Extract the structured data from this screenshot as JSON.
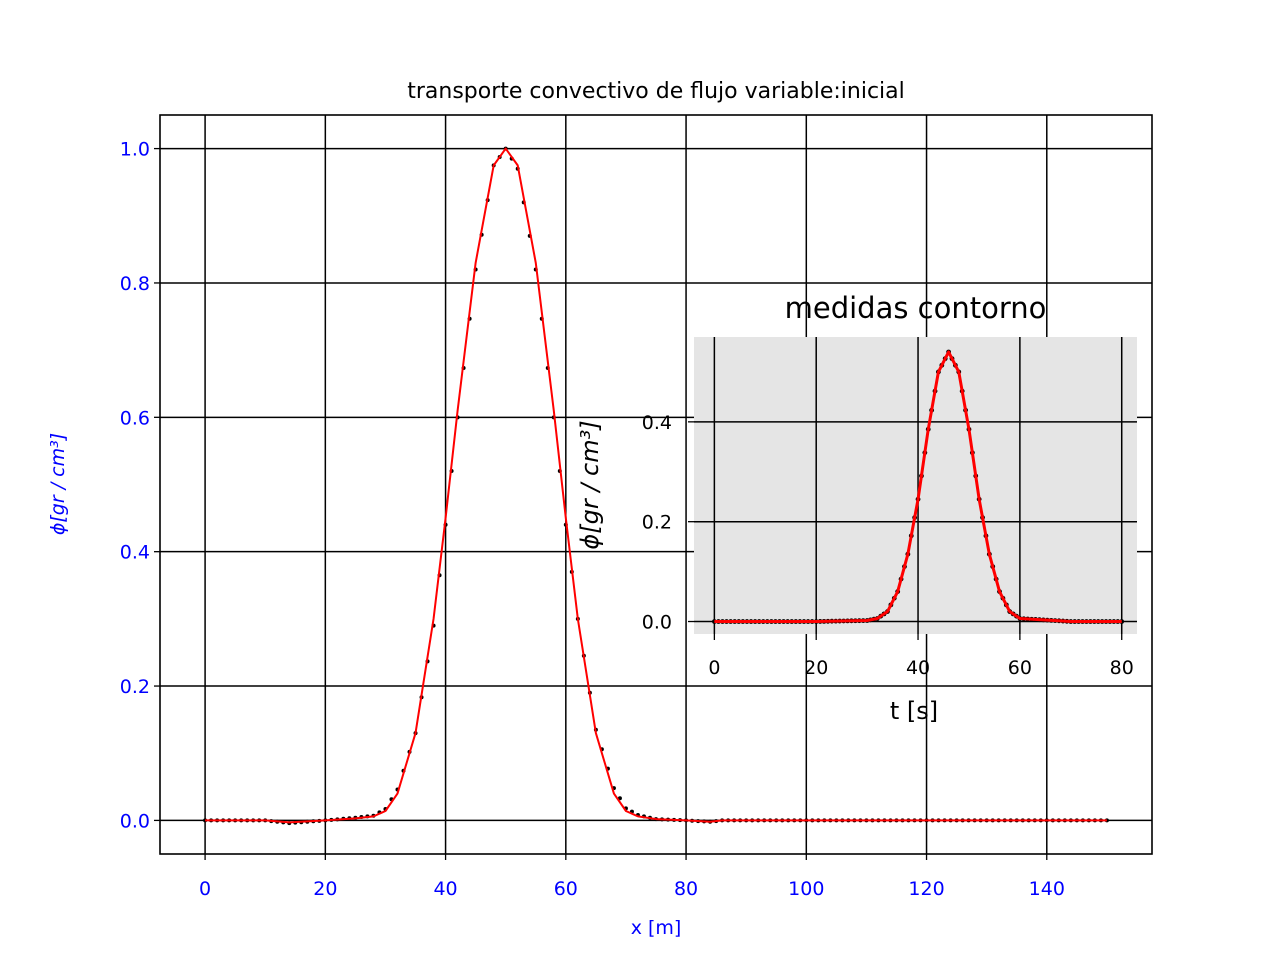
{
  "chart_data": [
    {
      "type": "line",
      "title": "transporte convectivo de flujo variable:inicial",
      "xlabel": "x [m]",
      "ylabel": "ϕ[gr / cm³]",
      "xlim": [
        -7.5,
        157.5
      ],
      "ylim": [
        -0.05,
        1.05
      ],
      "xticks": [
        "0",
        "20",
        "40",
        "60",
        "80",
        "100",
        "120",
        "140"
      ],
      "yticks": [
        "0.0",
        "0.2",
        "0.4",
        "0.6",
        "0.8",
        "1.0"
      ],
      "grid": true,
      "axis_text_color": "#0000ff",
      "background": "#ffffff",
      "series": [
        {
          "style": "dotted-markers",
          "color": "#000000",
          "x": [
            0,
            10,
            14,
            20,
            25,
            28,
            30,
            32,
            35,
            38,
            40,
            42,
            45,
            48,
            50,
            52,
            55,
            58,
            60,
            62,
            65,
            68,
            70,
            72,
            75,
            80,
            84,
            86,
            90,
            100,
            120,
            150
          ],
          "y": [
            0.0,
            0.0,
            -0.004,
            0.0,
            0.004,
            0.007,
            0.017,
            0.046,
            0.13,
            0.29,
            0.44,
            0.6,
            0.82,
            0.975,
            1.0,
            0.97,
            0.82,
            0.6,
            0.44,
            0.3,
            0.135,
            0.048,
            0.018,
            0.008,
            0.002,
            0.0,
            -0.002,
            0.0,
            0.0,
            0.0,
            0.0,
            0.0
          ]
        },
        {
          "style": "solid-line",
          "color": "#ff0000",
          "x": [
            0,
            10,
            14,
            20,
            25,
            28,
            30,
            32,
            35,
            38,
            40,
            42,
            45,
            48,
            50,
            52,
            55,
            58,
            60,
            62,
            65,
            68,
            70,
            72,
            75,
            80,
            84,
            86,
            90,
            100,
            120,
            150
          ],
          "y": [
            0.0,
            0.0,
            -0.003,
            0.0,
            0.003,
            0.006,
            0.014,
            0.04,
            0.13,
            0.3,
            0.45,
            0.61,
            0.83,
            0.975,
            1.0,
            0.975,
            0.83,
            0.61,
            0.45,
            0.3,
            0.13,
            0.04,
            0.014,
            0.006,
            0.002,
            0.0,
            -0.002,
            0.0,
            0.0,
            0.0,
            0.0,
            0.0
          ]
        }
      ]
    },
    {
      "type": "line",
      "title": "medidas contorno",
      "xlabel": "t [s]",
      "ylabel": "ϕ[gr / cm³]",
      "xlim": [
        -4,
        83
      ],
      "ylim": [
        -0.025,
        0.57
      ],
      "xticks": [
        "0",
        "20",
        "40",
        "60",
        "80"
      ],
      "yticks": [
        "0.0",
        "0.2",
        "0.4"
      ],
      "grid": true,
      "axis_text_color": "#000000",
      "background": "#e5e5e5",
      "series": [
        {
          "style": "dotted-markers",
          "color": "#000000",
          "x": [
            0,
            20,
            30,
            32,
            34,
            36,
            38,
            40,
            42,
            44,
            46,
            48,
            50,
            52,
            54,
            56,
            58,
            60,
            70,
            80
          ],
          "y": [
            0.0,
            0.0,
            0.002,
            0.006,
            0.02,
            0.06,
            0.135,
            0.245,
            0.385,
            0.5,
            0.54,
            0.5,
            0.385,
            0.245,
            0.135,
            0.06,
            0.02,
            0.006,
            0.0,
            0.0
          ]
        },
        {
          "style": "solid-line",
          "color": "#ff0000",
          "x": [
            0,
            20,
            30,
            32,
            34,
            36,
            38,
            40,
            42,
            44,
            46,
            48,
            50,
            52,
            54,
            56,
            58,
            60,
            70,
            80
          ],
          "y": [
            0.0,
            0.0,
            0.002,
            0.006,
            0.02,
            0.06,
            0.135,
            0.245,
            0.385,
            0.5,
            0.54,
            0.5,
            0.385,
            0.245,
            0.135,
            0.06,
            0.02,
            0.006,
            0.0,
            0.0
          ]
        }
      ]
    }
  ]
}
